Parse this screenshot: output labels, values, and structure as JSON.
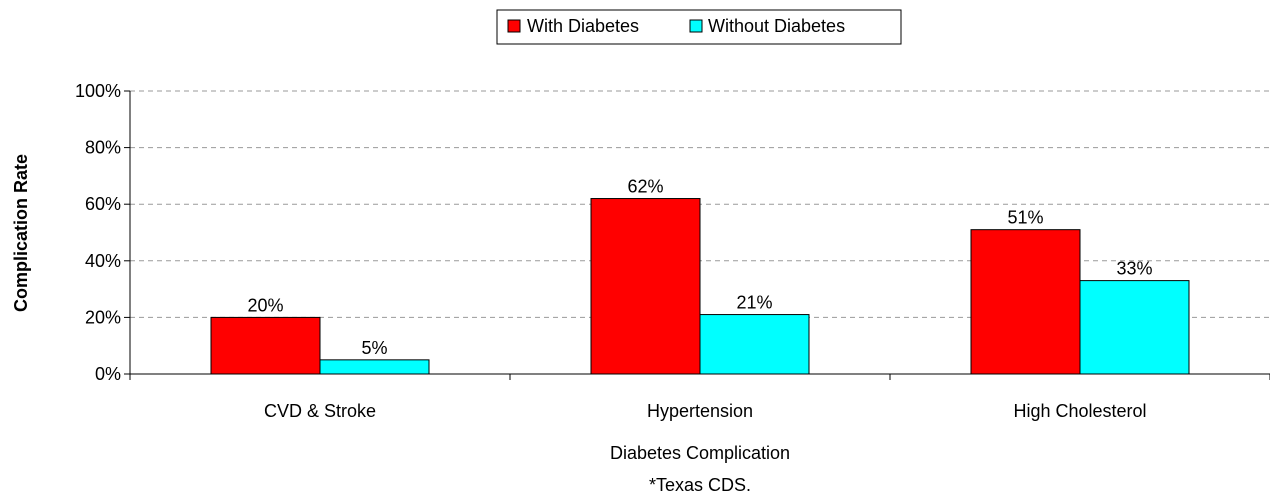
{
  "chart_data": {
    "type": "bar",
    "title": "",
    "xlabel": "Diabetes Complication",
    "footnote": "*Texas CDS.",
    "ylabel": "Complication Rate",
    "categories": [
      "CVD & Stroke",
      "Hypertension",
      "High Cholesterol"
    ],
    "series": [
      {
        "name": "With Diabetes",
        "color": "#ff0000",
        "values": [
          20,
          62,
          51
        ],
        "labels": [
          "20%",
          "62%",
          "51%"
        ]
      },
      {
        "name": "Without Diabetes",
        "color": "#00ffff",
        "values": [
          5,
          21,
          33
        ],
        "labels": [
          "5%",
          "21%",
          "33%"
        ]
      }
    ],
    "ylim": [
      0,
      100
    ],
    "yticks": [
      0,
      20,
      40,
      60,
      80,
      100
    ],
    "ytick_labels": [
      "0%",
      "20%",
      "40%",
      "60%",
      "80%",
      "100%"
    ],
    "grid": "horizontal dashed",
    "legend": "top-center"
  }
}
